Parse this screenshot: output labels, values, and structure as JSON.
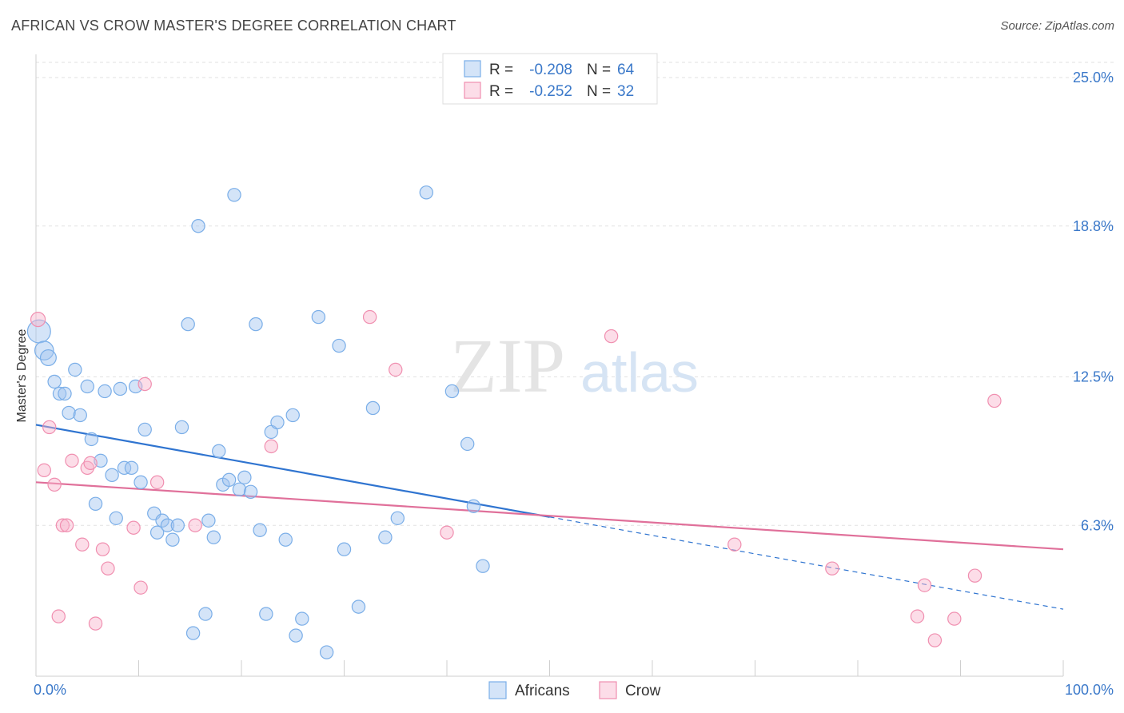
{
  "title": "AFRICAN VS CROW MASTER'S DEGREE CORRELATION CHART",
  "source": "Source: ZipAtlas.com",
  "watermark": {
    "zip": "ZIP",
    "atlas": "atlas"
  },
  "colors": {
    "africans": "#7aaee8",
    "africans_fill": "rgba(160,196,240,0.45)",
    "africans_line": "#2f74d0",
    "crow": "#f08fb0",
    "crow_fill": "rgba(248,180,205,0.45)",
    "crow_line": "#e0709a",
    "value_text": "#3a78c9"
  },
  "legend_top": [
    {
      "key": "africans",
      "r_label": "R = ",
      "r_value": "-0.208",
      "n_label": "N = ",
      "n_value": "64"
    },
    {
      "key": "crow",
      "r_label": "R = ",
      "r_value": "-0.252",
      "n_label": "N = ",
      "n_value": "32"
    }
  ],
  "legend_bottom": [
    {
      "key": "africans",
      "label": "Africans"
    },
    {
      "key": "crow",
      "label": "Crow"
    }
  ],
  "chart_data": {
    "type": "scatter",
    "ylabel": "Master's Degree",
    "xlim": [
      0,
      100
    ],
    "ylim": [
      0,
      25.0
    ],
    "x_tick_labels": [
      {
        "value": 0,
        "label": "0.0%"
      },
      {
        "value": 100,
        "label": "100.0%"
      }
    ],
    "y_tick_labels": [
      {
        "value": 6.3,
        "label": "6.3%"
      },
      {
        "value": 12.5,
        "label": "12.5%"
      },
      {
        "value": 18.8,
        "label": "18.8%"
      },
      {
        "value": 25.0,
        "label": "25.0%"
      }
    ],
    "grid": true,
    "series": [
      {
        "key": "africans",
        "name": "Africans",
        "trend": {
          "x0": 0,
          "y0": 10.5,
          "x1": 100,
          "y1": 2.8,
          "solid_until": 50
        },
        "points": [
          [
            0.3,
            14.4,
            1.6
          ],
          [
            0.8,
            13.6,
            1.3
          ],
          [
            1.2,
            13.3,
            1.1
          ],
          [
            1.8,
            12.3,
            0.9
          ],
          [
            2.3,
            11.8,
            0.9
          ],
          [
            2.8,
            11.8,
            0.9
          ],
          [
            3.2,
            11.0,
            0.9
          ],
          [
            3.8,
            12.8,
            0.9
          ],
          [
            4.3,
            10.9,
            0.9
          ],
          [
            5.0,
            12.1,
            0.9
          ],
          [
            5.4,
            9.9,
            0.9
          ],
          [
            5.8,
            7.2,
            0.9
          ],
          [
            6.3,
            9.0,
            0.9
          ],
          [
            6.7,
            11.9,
            0.9
          ],
          [
            7.4,
            8.4,
            0.9
          ],
          [
            7.8,
            6.6,
            0.9
          ],
          [
            8.2,
            12.0,
            0.9
          ],
          [
            8.6,
            8.7,
            0.9
          ],
          [
            9.3,
            8.7,
            0.9
          ],
          [
            9.7,
            12.1,
            0.9
          ],
          [
            10.2,
            8.1,
            0.9
          ],
          [
            10.6,
            10.3,
            0.9
          ],
          [
            11.5,
            6.8,
            0.9
          ],
          [
            11.8,
            6.0,
            0.9
          ],
          [
            12.3,
            6.5,
            0.9
          ],
          [
            12.8,
            6.3,
            0.9
          ],
          [
            13.3,
            5.7,
            0.9
          ],
          [
            13.8,
            6.3,
            0.9
          ],
          [
            14.2,
            10.4,
            0.9
          ],
          [
            14.8,
            14.7,
            0.9
          ],
          [
            15.3,
            1.8,
            0.9
          ],
          [
            15.8,
            18.8,
            0.9
          ],
          [
            16.5,
            2.6,
            0.9
          ],
          [
            16.8,
            6.5,
            0.9
          ],
          [
            17.3,
            5.8,
            0.9
          ],
          [
            17.8,
            9.4,
            0.9
          ],
          [
            18.2,
            8.0,
            0.9
          ],
          [
            18.8,
            8.2,
            0.9
          ],
          [
            19.3,
            20.1,
            0.9
          ],
          [
            19.8,
            7.8,
            0.9
          ],
          [
            20.3,
            8.3,
            0.9
          ],
          [
            20.9,
            7.7,
            0.9
          ],
          [
            21.4,
            14.7,
            0.9
          ],
          [
            21.8,
            6.1,
            0.9
          ],
          [
            22.4,
            2.6,
            0.9
          ],
          [
            22.9,
            10.2,
            0.9
          ],
          [
            23.5,
            10.6,
            0.9
          ],
          [
            24.3,
            5.7,
            0.9
          ],
          [
            25.0,
            10.9,
            0.9
          ],
          [
            25.3,
            1.7,
            0.9
          ],
          [
            25.9,
            2.4,
            0.9
          ],
          [
            27.5,
            15.0,
            0.9
          ],
          [
            28.3,
            1.0,
            0.9
          ],
          [
            29.5,
            13.8,
            0.9
          ],
          [
            30.0,
            5.3,
            0.9
          ],
          [
            31.4,
            2.9,
            0.9
          ],
          [
            32.8,
            11.2,
            0.9
          ],
          [
            34.0,
            5.8,
            0.9
          ],
          [
            35.2,
            6.6,
            0.9
          ],
          [
            38.0,
            20.2,
            0.9
          ],
          [
            40.5,
            11.9,
            0.9
          ],
          [
            42.0,
            9.7,
            0.9
          ],
          [
            42.6,
            7.1,
            0.9
          ],
          [
            43.5,
            4.6,
            0.9
          ]
        ]
      },
      {
        "key": "crow",
        "name": "Crow",
        "trend": {
          "x0": 0,
          "y0": 8.1,
          "x1": 100,
          "y1": 5.3,
          "solid_until": 100
        },
        "points": [
          [
            0.2,
            14.9,
            1.0
          ],
          [
            0.8,
            8.6,
            0.9
          ],
          [
            1.3,
            10.4,
            0.9
          ],
          [
            1.8,
            8.0,
            0.9
          ],
          [
            2.2,
            2.5,
            0.9
          ],
          [
            2.6,
            6.3,
            0.9
          ],
          [
            3.0,
            6.3,
            0.9
          ],
          [
            3.5,
            9.0,
            0.9
          ],
          [
            4.5,
            5.5,
            0.9
          ],
          [
            5.0,
            8.7,
            0.9
          ],
          [
            5.3,
            8.9,
            0.9
          ],
          [
            5.8,
            2.2,
            0.9
          ],
          [
            6.5,
            5.3,
            0.9
          ],
          [
            7.0,
            4.5,
            0.9
          ],
          [
            9.5,
            6.2,
            0.9
          ],
          [
            10.2,
            3.7,
            0.9
          ],
          [
            10.6,
            12.2,
            0.9
          ],
          [
            11.8,
            8.1,
            0.9
          ],
          [
            15.5,
            6.3,
            0.9
          ],
          [
            22.9,
            9.6,
            0.9
          ],
          [
            32.5,
            15.0,
            0.9
          ],
          [
            35.0,
            12.8,
            0.9
          ],
          [
            40.0,
            6.0,
            0.9
          ],
          [
            56.0,
            14.2,
            0.9
          ],
          [
            68.0,
            5.5,
            0.9
          ],
          [
            77.5,
            4.5,
            0.9
          ],
          [
            85.8,
            2.5,
            0.9
          ],
          [
            86.5,
            3.8,
            0.9
          ],
          [
            87.5,
            1.5,
            0.9
          ],
          [
            89.4,
            2.4,
            0.9
          ],
          [
            91.4,
            4.2,
            0.9
          ],
          [
            93.3,
            11.5,
            0.9
          ]
        ]
      }
    ]
  }
}
